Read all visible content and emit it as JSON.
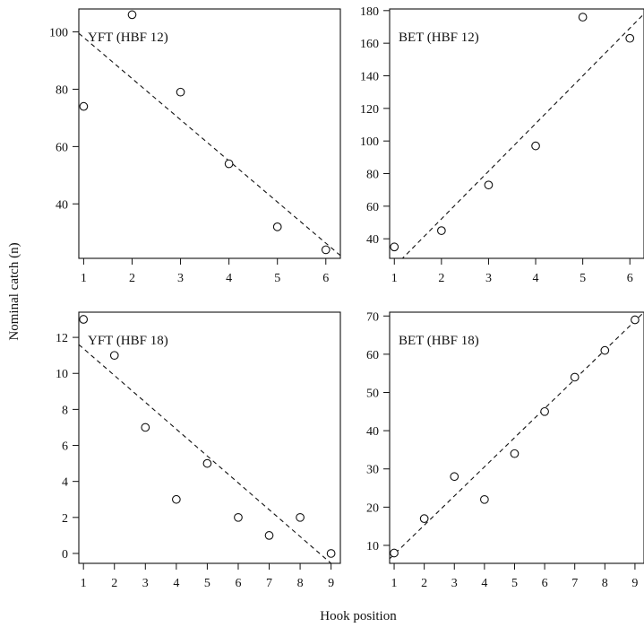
{
  "figure": {
    "ylabel": "Nominal catch (n)",
    "xlabel": "Hook position"
  },
  "chart_data": [
    {
      "type": "scatter",
      "label": "YFT (HBF 12)",
      "x": [
        1,
        2,
        3,
        4,
        5,
        6
      ],
      "y": [
        74,
        106,
        79,
        54,
        32,
        24
      ],
      "fit": {
        "x": [
          0.9,
          6.3
        ],
        "y": [
          99.5,
          22
        ]
      },
      "xlim": [
        0.9,
        6.3
      ],
      "ylim": [
        21,
        108
      ],
      "xticks": [
        1,
        2,
        3,
        4,
        5,
        6
      ],
      "yticks": [
        40,
        60,
        80,
        100
      ],
      "label_position": "top-left"
    },
    {
      "type": "scatter",
      "label": "BET (HBF 12)",
      "x": [
        1,
        2,
        3,
        4,
        5,
        6
      ],
      "y": [
        35,
        45,
        73,
        97,
        176,
        163
      ],
      "fit": {
        "x": [
          0.9,
          6.3
        ],
        "y": [
          20,
          178
        ]
      },
      "xlim": [
        0.9,
        6.3
      ],
      "ylim": [
        28,
        181
      ],
      "xticks": [
        1,
        2,
        3,
        4,
        5,
        6
      ],
      "yticks": [
        40,
        60,
        80,
        100,
        120,
        140,
        160,
        180
      ],
      "label_position": "top-left"
    },
    {
      "type": "scatter",
      "label": "YFT (HBF 18)",
      "x": [
        1,
        2,
        3,
        4,
        5,
        6,
        7,
        8,
        9
      ],
      "y": [
        13,
        11,
        7,
        3,
        5,
        2,
        1,
        2,
        0
      ],
      "fit": {
        "x": [
          0.85,
          9.3
        ],
        "y": [
          11.6,
          -1.0
        ]
      },
      "xlim": [
        0.85,
        9.3
      ],
      "ylim": [
        -0.55,
        13.4
      ],
      "xticks": [
        1,
        2,
        3,
        4,
        5,
        6,
        7,
        8,
        9
      ],
      "yticks": [
        0,
        2,
        4,
        6,
        8,
        10,
        12
      ],
      "label_position": "top-left"
    },
    {
      "type": "scatter",
      "label": "BET (HBF 18)",
      "x": [
        1,
        2,
        3,
        4,
        5,
        6,
        7,
        8,
        9
      ],
      "y": [
        8,
        17,
        28,
        22,
        34,
        45,
        54,
        61,
        69
      ],
      "fit": {
        "x": [
          0.85,
          9.3
        ],
        "y": [
          6.5,
          71
        ]
      },
      "xlim": [
        0.85,
        9.3
      ],
      "ylim": [
        5.3,
        71
      ],
      "xticks": [
        1,
        2,
        3,
        4,
        5,
        6,
        7,
        8,
        9
      ],
      "yticks": [
        10,
        20,
        30,
        40,
        50,
        60,
        70
      ],
      "label_position": "top-left"
    }
  ]
}
